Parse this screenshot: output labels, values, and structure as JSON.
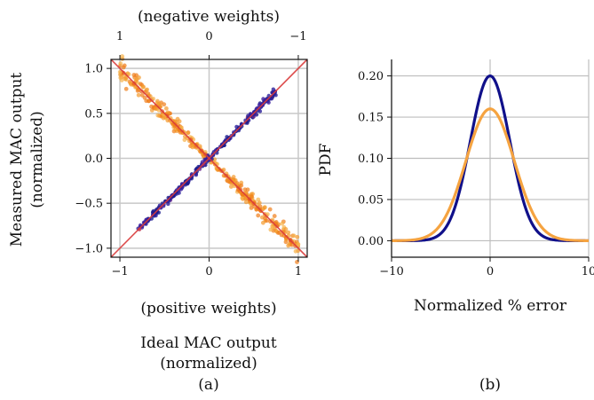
{
  "chart_data": [
    {
      "type": "scatter",
      "top_axis_label": "(negative weights)",
      "top_ticks": [
        "1",
        "0",
        "−1"
      ],
      "xlabel": "(positive weights)",
      "ylabel_lines": [
        "Measured MAC output",
        "(normalized)"
      ],
      "xlim": [
        -1.1,
        1.1
      ],
      "ylim": [
        -1.1,
        1.1
      ],
      "xticks": [
        -1,
        0,
        1
      ],
      "xtick_labels": [
        "−1",
        "0",
        "1"
      ],
      "yticks": [
        -1.0,
        -0.5,
        0.0,
        0.5,
        1.0
      ],
      "ytick_labels": [
        "−1.0",
        "−0.5",
        "0.0",
        "0.5",
        "1.0"
      ],
      "grid": true,
      "reference_lines": [
        {
          "x": [
            -1.1,
            1.1
          ],
          "y": [
            -1.1,
            1.1
          ]
        },
        {
          "x": [
            -1.1,
            1.1
          ],
          "y": [
            1.1,
            -1.1
          ]
        }
      ],
      "series": [
        {
          "x_range": [
            -0.8,
            0.75
          ],
          "slope": 1,
          "spread": 0.02,
          "color": "#1a1a8c"
        },
        {
          "x_range": [
            -1.0,
            1.0
          ],
          "slope": -1,
          "spread": 0.05,
          "color": "#f28c1e"
        }
      ],
      "colors": {
        "positive": "#1a1a8c",
        "negative": "#f28c1e",
        "reference": "#d93b3b"
      },
      "caption_lines": [
        "Ideal MAC output",
        "(normalized)",
        "(a)"
      ]
    },
    {
      "type": "line",
      "xlabel": "Normalized % error",
      "ylabel": "PDF",
      "xlim": [
        -10,
        10
      ],
      "ylim": [
        -0.02,
        0.22
      ],
      "xticks": [
        -10,
        0,
        10
      ],
      "xtick_labels": [
        "−10",
        "0",
        "10"
      ],
      "yticks": [
        0.0,
        0.05,
        0.1,
        0.15,
        0.2
      ],
      "ytick_labels": [
        "0.00",
        "0.05",
        "0.10",
        "0.15",
        "0.20"
      ],
      "grid": true,
      "series": [
        {
          "mean": 0,
          "std": 2.0,
          "peak": 0.2,
          "color": "#10108a"
        },
        {
          "mean": 0,
          "std": 2.45,
          "peak": 0.16,
          "color": "#f5a340"
        }
      ],
      "caption": "(b)"
    }
  ]
}
